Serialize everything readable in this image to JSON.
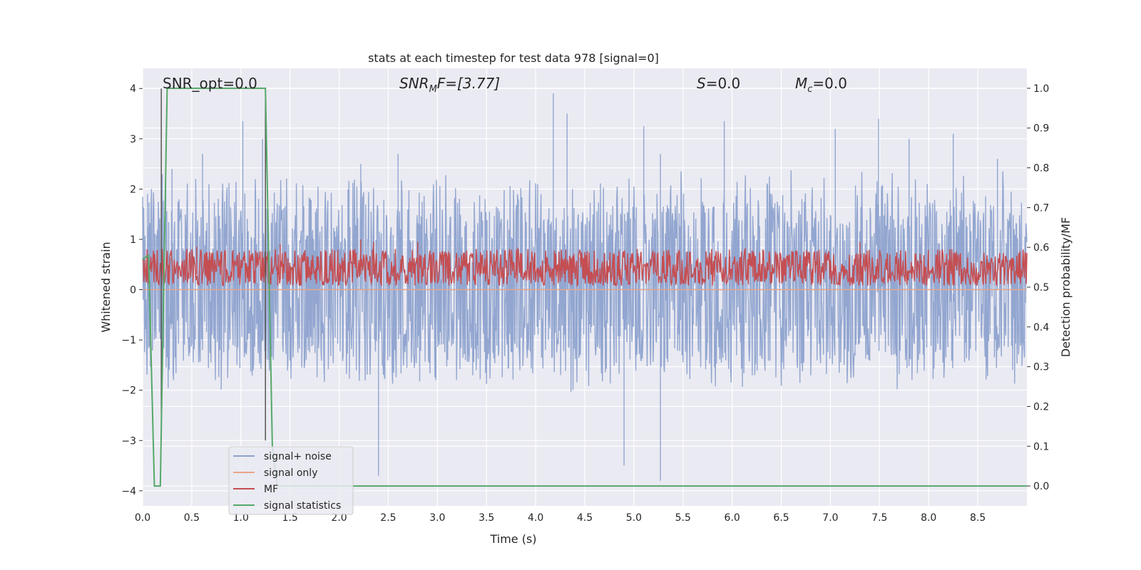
{
  "chart_data": {
    "type": "line",
    "title": "stats at each timestep for test data 978 [signal=0]",
    "xlabel": "Time (s)",
    "ylabel": "Whitened strain",
    "y2label": "Detection probability/MF",
    "xlim": [
      0.0,
      9.0
    ],
    "ylim": [
      -4.3,
      4.4
    ],
    "y2lim": [
      -0.05,
      1.05
    ],
    "xticks": [
      "0.0",
      "0.5",
      "1.0",
      "1.5",
      "2.0",
      "2.5",
      "3.0",
      "3.5",
      "4.0",
      "4.5",
      "5.0",
      "5.5",
      "6.0",
      "6.5",
      "7.0",
      "7.5",
      "8.0",
      "8.5"
    ],
    "yticks": [
      "4",
      "3",
      "2",
      "1",
      "0",
      "−1",
      "−2",
      "−3",
      "−4"
    ],
    "y2ticks": [
      "1.0",
      "0.9",
      "0.8",
      "0.7",
      "0.6",
      "0.5",
      "0.4",
      "0.3",
      "0.2",
      "0.1",
      "0.0"
    ],
    "grid": true,
    "legend_position": "lower-left",
    "annotations": {
      "snr_opt": "SNR_opt=0.0",
      "snr_mf_base": "SNR",
      "snr_mf_sub": "M",
      "snr_mf_rest": "F=[3.77]",
      "s_label": "S",
      "s_value": "=0.0",
      "mc_base": "M",
      "mc_sub": "c",
      "mc_value": "=0.0"
    },
    "series": [
      {
        "name": "signal+ noise",
        "color": "#8da2cd",
        "axis": "left",
        "description_values": "noise spanning roughly -3.8 to 3.9, envelope approx -1.9 to 2.2",
        "envelope_upper": 2.2,
        "envelope_lower": -1.9,
        "peaks": [
          [
            0.05,
            1.9
          ],
          [
            0.2,
            2.3
          ],
          [
            0.3,
            2.4
          ],
          [
            0.61,
            2.7
          ],
          [
            1.02,
            3.35
          ],
          [
            1.22,
            3.0
          ],
          [
            2.22,
            2.5
          ],
          [
            2.4,
            -3.7
          ],
          [
            2.6,
            2.7
          ],
          [
            4.18,
            3.9
          ],
          [
            4.32,
            3.5
          ],
          [
            4.9,
            -3.5
          ],
          [
            5.1,
            3.25
          ],
          [
            5.27,
            -3.8
          ],
          [
            5.27,
            2.7
          ],
          [
            5.92,
            3.35
          ],
          [
            7.05,
            3.2
          ],
          [
            7.49,
            3.4
          ],
          [
            7.8,
            3.0
          ],
          [
            8.25,
            3.1
          ],
          [
            8.7,
            2.6
          ]
        ]
      },
      {
        "name": "signal only",
        "color": "#e8a589",
        "axis": "left",
        "values_note": "flat at 0 (no signal)",
        "x": [
          0.0,
          9.0
        ],
        "y": [
          0.0,
          0.0
        ]
      },
      {
        "name": "MF",
        "color": "#c44e52",
        "axis": "left",
        "envelope_upper": 0.85,
        "envelope_lower": 0.0,
        "peaks": [
          [
            0.55,
            0.85
          ],
          [
            1.4,
            0.9
          ],
          [
            2.22,
            1.0
          ],
          [
            2.35,
            0.95
          ],
          [
            2.8,
            0.95
          ],
          [
            7.3,
            0.95
          ]
        ]
      },
      {
        "name": "signal statistics",
        "color": "#55a868",
        "axis": "right",
        "x": [
          0.0,
          0.06,
          0.12,
          0.18,
          0.25,
          1.25,
          1.32,
          1.37,
          9.0
        ],
        "y": [
          0.57,
          0.58,
          0.0,
          0.0,
          1.0,
          1.0,
          0.1,
          0.0,
          0.0
        ]
      }
    ],
    "vlines": [
      0.19,
      1.25
    ]
  }
}
